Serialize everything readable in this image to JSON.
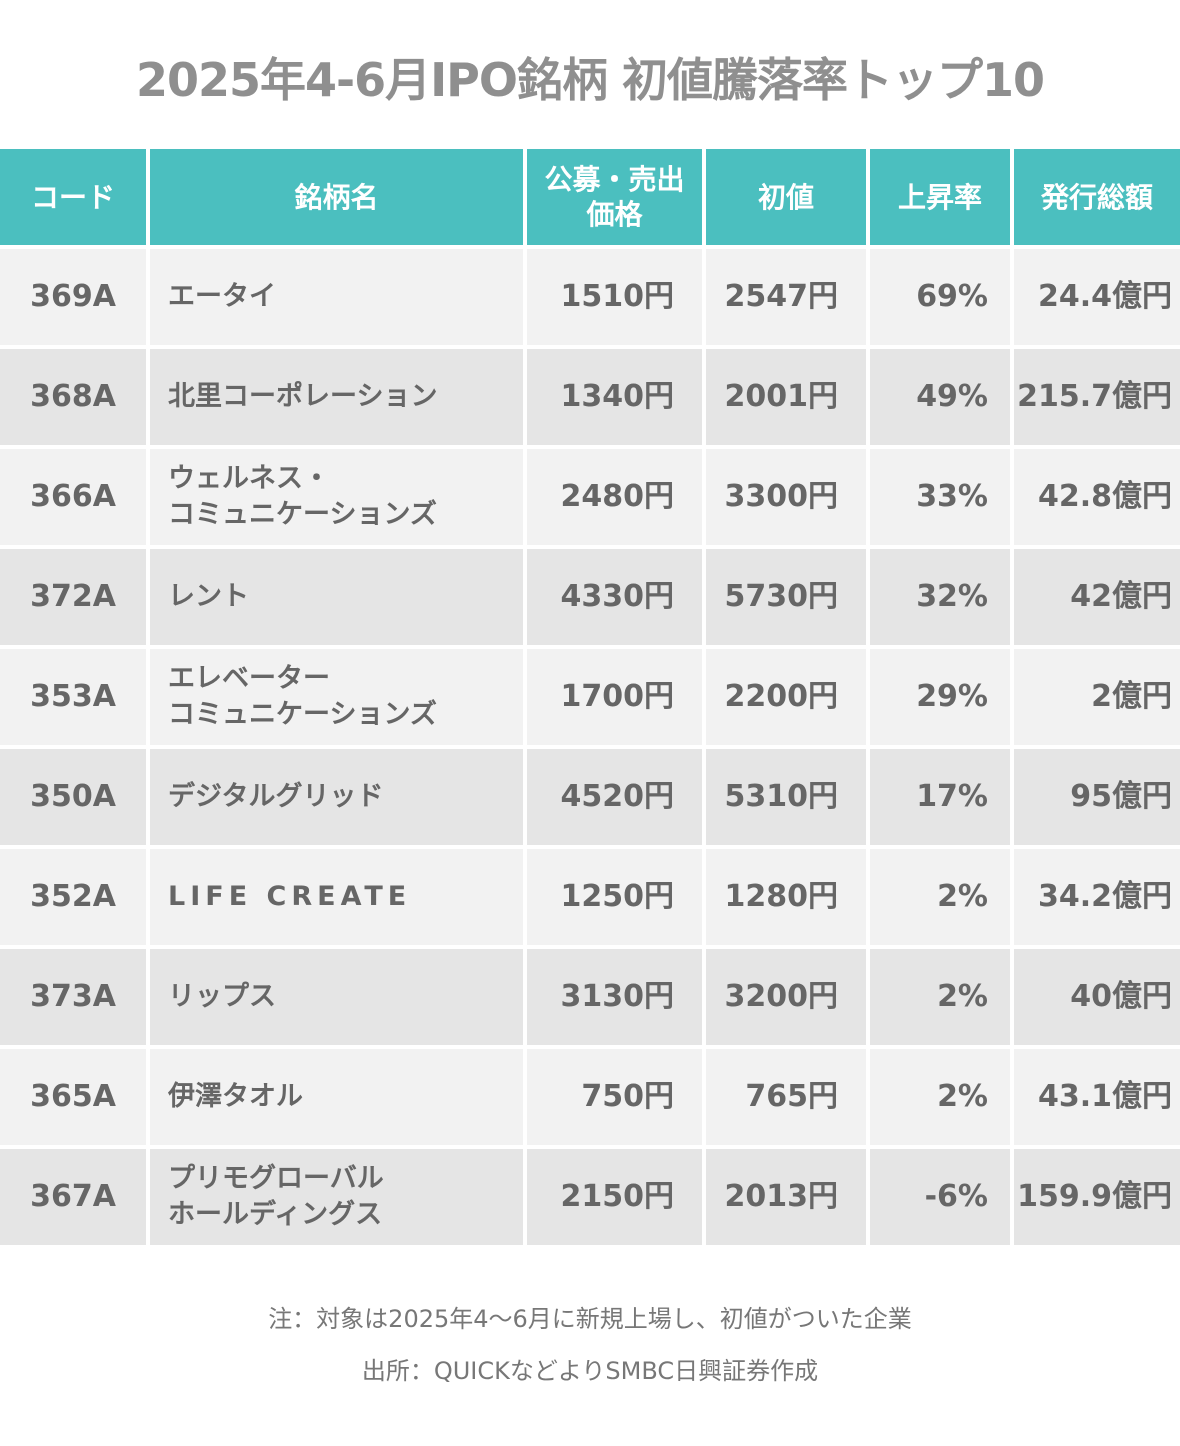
{
  "title": "2025年4-6月IPO銘柄 初値騰落率トップ10",
  "chart_data": {
    "type": "table",
    "title": "2025年4-6月IPO銘柄 初値騰落率トップ10",
    "columns": [
      "コード",
      "銘柄名",
      "公募・売出\n価格",
      "初値",
      "上昇率",
      "発行総額"
    ],
    "rows": [
      [
        "369A",
        "エータイ",
        "1510円",
        "2547円",
        "69%",
        "24.4億円"
      ],
      [
        "368A",
        "北里コーポレーション",
        "1340円",
        "2001円",
        "49%",
        "215.7億円"
      ],
      [
        "366A",
        "ウェルネス・\nコミュニケーションズ",
        "2480円",
        "3300円",
        "33%",
        "42.8億円"
      ],
      [
        "372A",
        "レント",
        "4330円",
        "5730円",
        "32%",
        "42億円"
      ],
      [
        "353A",
        "エレベーター\nコミュニケーションズ",
        "1700円",
        "2200円",
        "29%",
        "2億円"
      ],
      [
        "350A",
        "デジタルグリッド",
        "4520円",
        "5310円",
        "17%",
        "95億円"
      ],
      [
        "352A",
        "LIFE CREATE",
        "1250円",
        "1280円",
        "2%",
        "34.2億円"
      ],
      [
        "373A",
        "リップス",
        "3130円",
        "3200円",
        "2%",
        "40億円"
      ],
      [
        "365A",
        "伊澤タオル",
        "750円",
        "765円",
        "2%",
        "43.1億円"
      ],
      [
        "367A",
        "プリモグローバル\nホールディングス",
        "2150円",
        "2013円",
        "-6%",
        "159.9億円"
      ]
    ]
  },
  "notes": [
    "注：対象は2025年4～6月に新規上場し、初値がついた企業",
    "出所：QUICKなどよりSMBC日興証券作成"
  ],
  "colors": {
    "header": "#4bbfbf",
    "row_light": "#f2f2f2",
    "row_dark": "#e5e5e5",
    "text": "#666666",
    "title": "#8f8f8f"
  }
}
